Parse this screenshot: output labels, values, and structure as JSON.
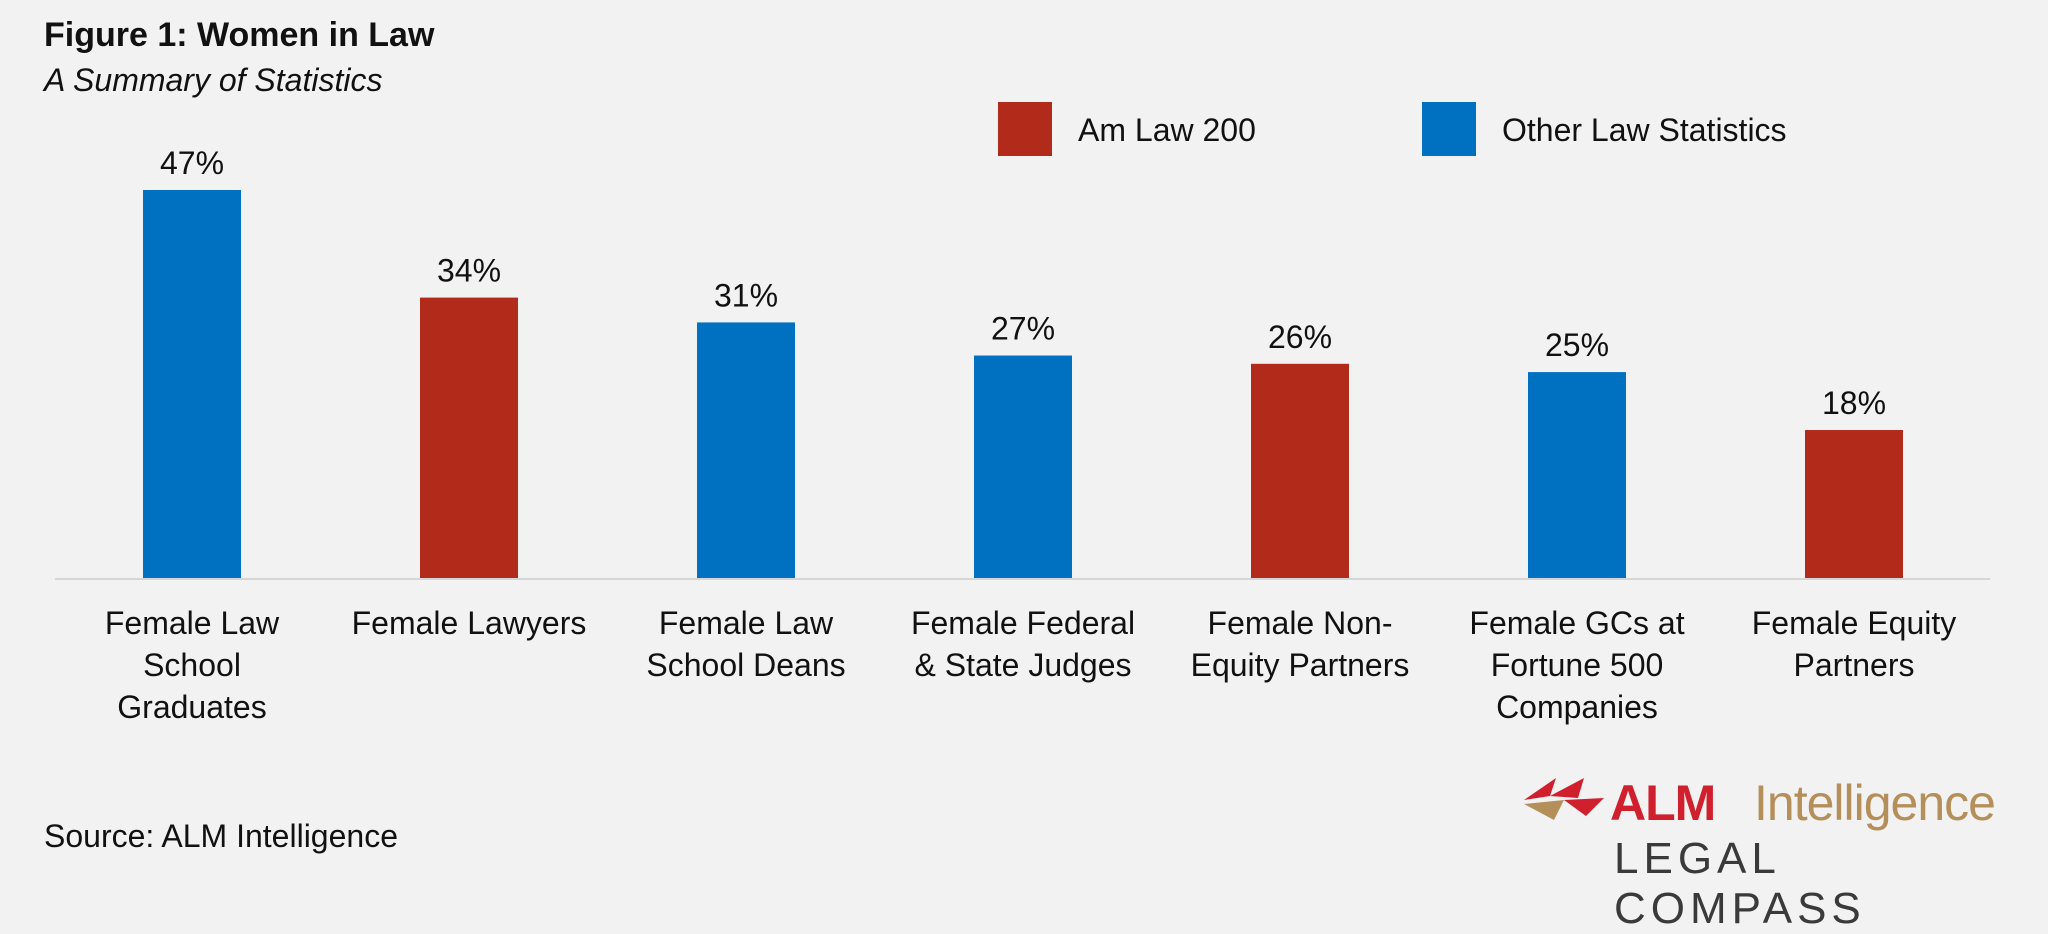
{
  "header": {
    "title": "Figure 1: Women in Law",
    "subtitle": "A Summary of Statistics"
  },
  "footer": {
    "source": "Source: ALM Intelligence"
  },
  "logo": {
    "brand": "ALM",
    "brand_suffix": "Intelligence",
    "tagline": "LEGAL COMPASS",
    "colors": {
      "red": "#d0202e",
      "gold": "#b58f5a",
      "gray": "#3a3a3a"
    }
  },
  "chart_data": {
    "type": "bar",
    "categories": [
      [
        "Female Law",
        "School",
        "Graduates"
      ],
      [
        "Female Lawyers"
      ],
      [
        "Female Law",
        "School Deans"
      ],
      [
        "Female Federal",
        "& State Judges"
      ],
      [
        "Female Non-",
        "Equity Partners"
      ],
      [
        "Female GCs at",
        "Fortune 500",
        "Companies"
      ],
      [
        "Female Equity",
        "Partners"
      ]
    ],
    "values": [
      47,
      34,
      31,
      27,
      26,
      25,
      18
    ],
    "labels": [
      "47%",
      "34%",
      "31%",
      "27%",
      "26%",
      "25%",
      "18%"
    ],
    "groups": [
      "Other Law Statistics",
      "Am Law 200",
      "Other Law Statistics",
      "Other Law Statistics",
      "Am Law 200",
      "Other Law Statistics",
      "Am Law 200"
    ],
    "legend": [
      {
        "name": "Am Law 200",
        "color": "#b22a1a"
      },
      {
        "name": "Other Law Statistics",
        "color": "#0070c0"
      }
    ],
    "legend_position": "top-right",
    "ylim": [
      0,
      47
    ],
    "grid": false,
    "xlabel": "",
    "ylabel": ""
  }
}
